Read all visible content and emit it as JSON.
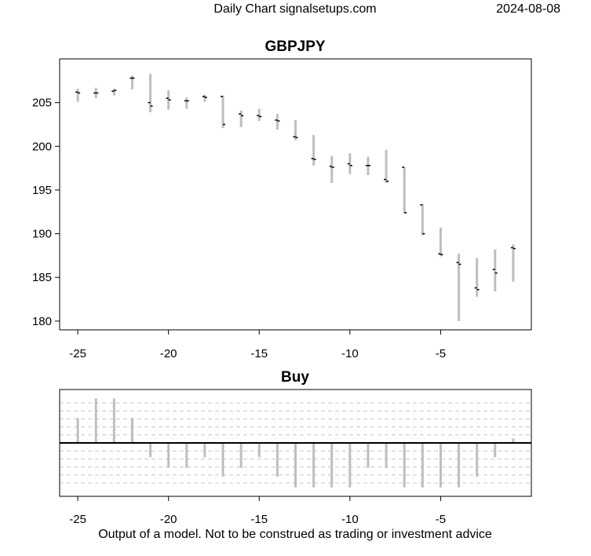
{
  "header": {
    "left_text": "Daily Chart signalsetups.com",
    "right_text": "2024-08-08"
  },
  "footer": {
    "disclaimer": "Output of a model. Not to be construed as trading or investment advice"
  },
  "colors": {
    "bar": "#bebebe",
    "grid": "#c8c8c8",
    "axis": "#000000",
    "marker": "#000000"
  },
  "chart_data": [
    {
      "type": "ohlc",
      "title": "GBPJPY",
      "xlabel": "",
      "ylabel": "",
      "xlim": [
        -26,
        0
      ],
      "ylim": [
        179,
        210
      ],
      "x_ticks": [
        -25,
        -20,
        -15,
        -10,
        -5
      ],
      "y_ticks": [
        180,
        185,
        190,
        195,
        200,
        205
      ],
      "x": [
        -25,
        -24,
        -23,
        -22,
        -21,
        -20,
        -19,
        -18,
        -17,
        -16,
        -15,
        -14,
        -13,
        -12,
        -11,
        -10,
        -9,
        -8,
        -7,
        -6,
        -5,
        -4,
        -3,
        -2,
        -1
      ],
      "open": [
        206.2,
        206.1,
        206.3,
        207.8,
        205.0,
        205.5,
        205.2,
        205.7,
        205.7,
        203.7,
        203.5,
        203.0,
        201.1,
        198.6,
        197.7,
        198.0,
        197.8,
        196.2,
        197.6,
        193.3,
        187.7,
        186.7,
        183.8,
        185.9,
        188.4
      ],
      "high": [
        206.6,
        206.7,
        206.6,
        208.1,
        208.3,
        206.4,
        205.6,
        205.9,
        205.8,
        204.1,
        204.3,
        203.7,
        203.0,
        201.3,
        198.9,
        199.2,
        198.8,
        199.6,
        197.6,
        193.4,
        190.7,
        187.7,
        187.2,
        188.2,
        188.8
      ],
      "low": [
        205.1,
        205.5,
        205.8,
        206.5,
        203.9,
        204.2,
        204.3,
        205.1,
        202.1,
        202.2,
        202.9,
        201.9,
        200.7,
        197.8,
        195.8,
        196.8,
        196.7,
        195.8,
        192.3,
        189.8,
        187.4,
        180.0,
        182.8,
        183.4,
        184.5
      ],
      "close": [
        206.1,
        206.1,
        206.4,
        207.8,
        204.6,
        205.3,
        205.2,
        205.6,
        202.5,
        203.5,
        203.4,
        202.9,
        201.0,
        198.5,
        197.6,
        197.8,
        197.8,
        196.0,
        192.4,
        190.0,
        187.6,
        186.5,
        183.6,
        185.5,
        188.3
      ]
    },
    {
      "type": "bar",
      "title": "Buy",
      "xlabel": "",
      "ylabel": "",
      "xlim": [
        -26,
        0
      ],
      "ylim": [
        -1.2,
        1.2
      ],
      "x_ticks": [
        -25,
        -20,
        -15,
        -10,
        -5
      ],
      "baseline": 0,
      "grid_levels": [
        -0.9,
        -0.72,
        -0.54,
        -0.36,
        -0.18,
        0.18,
        0.36,
        0.54,
        0.72,
        0.9
      ],
      "x": [
        -25,
        -24,
        -23,
        -22,
        -21,
        -20,
        -19,
        -18,
        -17,
        -16,
        -15,
        -14,
        -13,
        -12,
        -11,
        -10,
        -9,
        -8,
        -7,
        -6,
        -5,
        -4,
        -3,
        -2,
        -1
      ],
      "values": [
        0.56,
        1.0,
        1.0,
        0.56,
        -0.32,
        -0.56,
        -0.56,
        -0.32,
        -0.76,
        -0.56,
        -0.32,
        -0.76,
        -1.0,
        -1.0,
        -1.0,
        -1.0,
        -0.56,
        -0.56,
        -1.0,
        -1.0,
        -1.0,
        -1.0,
        -0.76,
        -0.32,
        0.1
      ]
    }
  ]
}
